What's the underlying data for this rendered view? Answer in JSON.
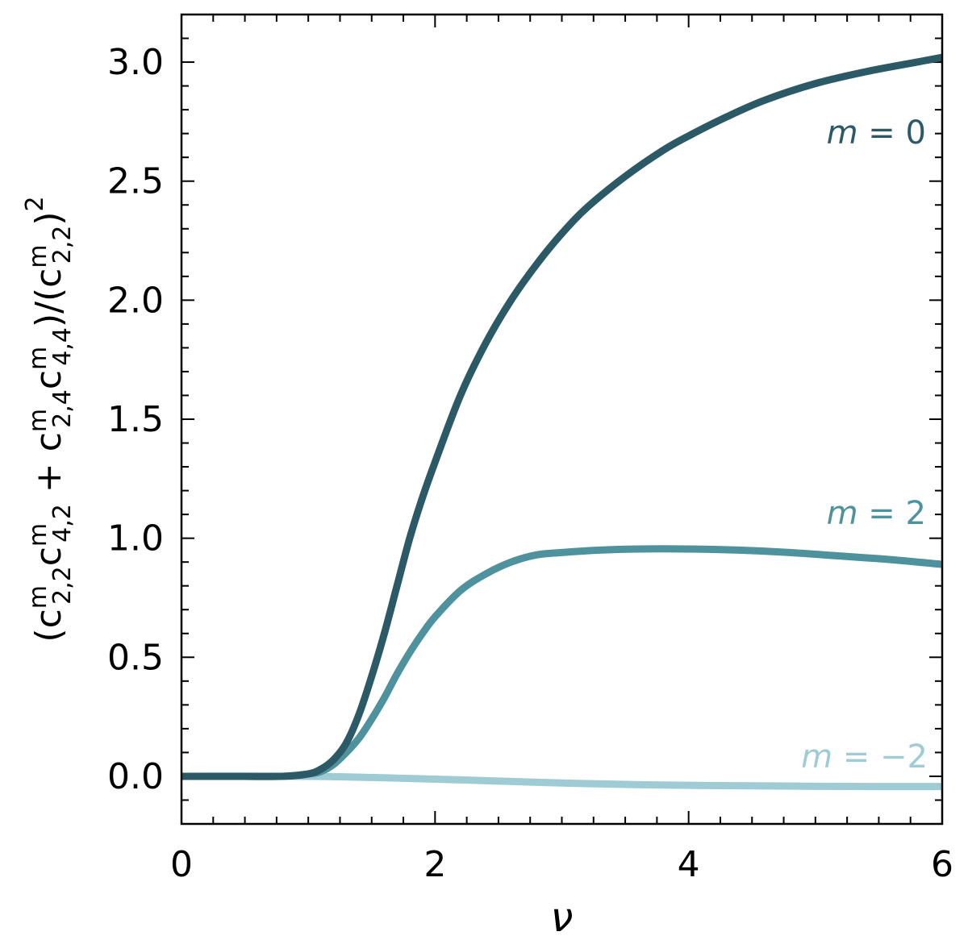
{
  "chart_data": {
    "type": "line",
    "xlabel": "ν",
    "ylabel_parts": {
      "open": "(c",
      "sup1": "m",
      "sub1": "2,2",
      "c2": "c",
      "sup2": "m",
      "sub2": "4,2",
      "plus": " + c",
      "sup3": "m",
      "sub3": "2,4",
      "c4": "c",
      "sup4": "m",
      "sub4": "4,4",
      "mid": ")/(c",
      "sup5": "m",
      "sub5": "2,2",
      "close": ")",
      "exp": "2"
    },
    "xlim": [
      0,
      6
    ],
    "ylim": [
      -0.2,
      3.2
    ],
    "xticks": [
      "0",
      "2",
      "4",
      "6"
    ],
    "yticks": [
      "0.0",
      "0.5",
      "1.0",
      "1.5",
      "2.0",
      "2.5",
      "3.0"
    ],
    "grid": false,
    "series": [
      {
        "name": "m = 0",
        "label_prefix": "m",
        "label_value": "= 0",
        "color": "#2b5a66",
        "x": [
          0,
          0.5,
          0.8,
          1.0,
          1.1,
          1.2,
          1.3,
          1.4,
          1.5,
          1.6,
          1.7,
          1.8,
          1.9,
          2.0,
          2.2,
          2.4,
          2.6,
          2.8,
          3.0,
          3.2,
          3.5,
          3.8,
          4.0,
          4.3,
          4.6,
          5.0,
          5.4,
          5.8,
          6.0
        ],
        "y": [
          0.0,
          0.0,
          0.0,
          0.01,
          0.03,
          0.07,
          0.14,
          0.26,
          0.42,
          0.6,
          0.8,
          1.0,
          1.17,
          1.32,
          1.6,
          1.82,
          2.0,
          2.15,
          2.28,
          2.39,
          2.52,
          2.63,
          2.69,
          2.77,
          2.84,
          2.91,
          2.96,
          3.0,
          3.02
        ]
      },
      {
        "name": "m = 2",
        "label_prefix": "m",
        "label_value": "= 2",
        "color": "#4e929d",
        "x": [
          0,
          0.5,
          0.8,
          1.0,
          1.1,
          1.2,
          1.3,
          1.4,
          1.5,
          1.6,
          1.7,
          1.8,
          1.9,
          2.0,
          2.2,
          2.4,
          2.6,
          2.8,
          3.0,
          3.3,
          3.6,
          4.0,
          4.4,
          4.8,
          5.2,
          5.6,
          6.0
        ],
        "y": [
          0.0,
          0.0,
          0.0,
          0.01,
          0.02,
          0.05,
          0.1,
          0.16,
          0.24,
          0.33,
          0.43,
          0.52,
          0.6,
          0.67,
          0.78,
          0.85,
          0.9,
          0.93,
          0.94,
          0.95,
          0.955,
          0.955,
          0.95,
          0.94,
          0.925,
          0.91,
          0.89
        ]
      },
      {
        "name": "m = −2",
        "label_prefix": "m",
        "label_value": "= −2",
        "color": "#9ecbd4",
        "x": [
          0,
          1.0,
          1.5,
          2.0,
          2.5,
          3.0,
          3.5,
          4.0,
          4.5,
          5.0,
          5.5,
          6.0
        ],
        "y": [
          0.0,
          0.0,
          -0.005,
          -0.012,
          -0.02,
          -0.028,
          -0.034,
          -0.038,
          -0.04,
          -0.042,
          -0.043,
          -0.043
        ]
      }
    ]
  }
}
